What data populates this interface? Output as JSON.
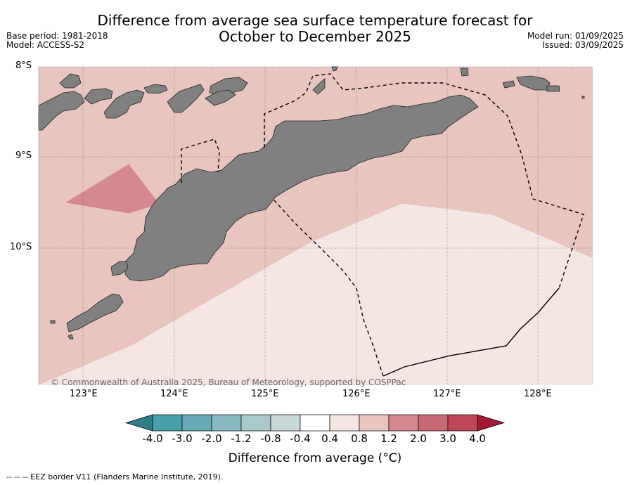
{
  "header": {
    "title_line1": "Difference from average sea surface temperature forecast for",
    "title_line2": "October to December 2025",
    "base_period": "Base period: 1981-2018",
    "model": "Model: ACCESS-S2",
    "model_run": "Model run: 01/09/2025",
    "issued": "Issued: 03/09/2025"
  },
  "map": {
    "lat_labels": [
      "8°S",
      "9°S",
      "10°S"
    ],
    "lon_labels": [
      "123°E",
      "124°E",
      "125°E",
      "126°E",
      "127°E",
      "128°E"
    ],
    "copyright": "© Commonwealth of Australia 2025, Bureau of Meteorology, supported by COSPPac",
    "colors": {
      "anomaly_0_4_to_0_8": "#f5e6e3",
      "anomaly_0_8_to_1_2": "#e8c5be",
      "anomaly_1_2_to_2_0": "#d48890",
      "land": "#808080"
    }
  },
  "colorbar": {
    "ticks": [
      "-4.0",
      "-3.0",
      "-2.0",
      "-1.2",
      "-0.8",
      "-0.4",
      "0.4",
      "0.8",
      "1.2",
      "2.0",
      "3.0",
      "4.0"
    ],
    "colors": [
      "#2f7d88",
      "#48a0ad",
      "#67a9b6",
      "#88b9c3",
      "#a9c9cc",
      "#c8d7d7",
      "#ffffff",
      "#f5e6e3",
      "#e8c5be",
      "#d48890",
      "#c86a74",
      "#bf4656",
      "#a21a35"
    ],
    "label": "Difference from average (°C)"
  },
  "footnote": "--  --  -- EEZ border V11 (Flanders Marine Institute, 2019)."
}
